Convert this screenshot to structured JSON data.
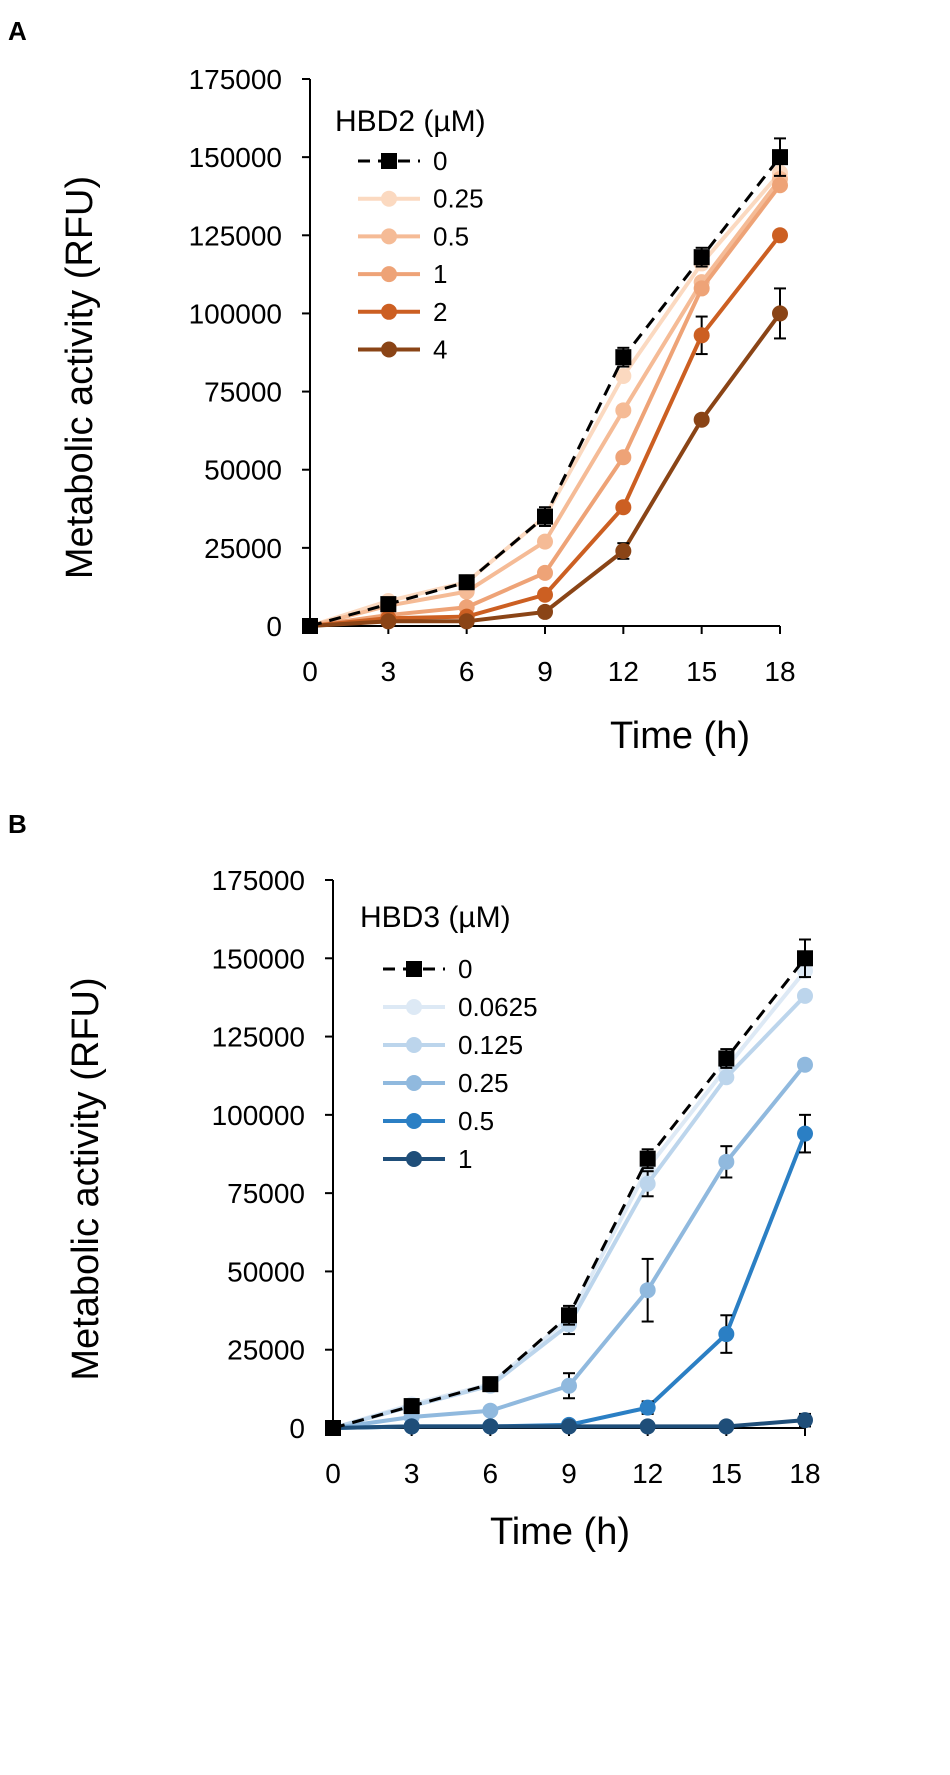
{
  "chart_data": [
    {
      "type": "line",
      "panel_label": "A",
      "xlabel": "Time (h)",
      "ylabel": "Metabolic activity (RFU)",
      "x": [
        0,
        3,
        6,
        9,
        12,
        15,
        18
      ],
      "xlim": [
        0,
        18
      ],
      "xticks": [
        "0",
        "3",
        "6",
        "9",
        "12",
        "15",
        "18"
      ],
      "ylim": [
        0,
        175000
      ],
      "yticks": [
        "0",
        "25000",
        "50000",
        "75000",
        "100000",
        "125000",
        "150000",
        "175000"
      ],
      "legend_title": "HBD2 (µM)",
      "legend_position": "top-left",
      "series": [
        {
          "name": "0",
          "color": "#000000",
          "marker": "square",
          "dashed": true,
          "values": [
            0,
            7000,
            14000,
            35000,
            86000,
            118000,
            150000
          ],
          "errors": [
            0,
            800,
            1500,
            3000,
            3000,
            3000,
            6000
          ]
        },
        {
          "name": "0.25",
          "color": "#fbd9c0",
          "marker": "circle",
          "dashed": false,
          "values": [
            0,
            8000,
            14000,
            35000,
            80000,
            116000,
            145000
          ],
          "errors": [
            0,
            0,
            0,
            0,
            0,
            0,
            0
          ]
        },
        {
          "name": "0.5",
          "color": "#f5bb96",
          "marker": "circle",
          "dashed": false,
          "values": [
            0,
            6500,
            11000,
            27000,
            69000,
            110000,
            143000
          ],
          "errors": [
            0,
            0,
            0,
            0,
            0,
            0,
            0
          ]
        },
        {
          "name": "1",
          "color": "#eea377",
          "marker": "circle",
          "dashed": false,
          "values": [
            0,
            3500,
            6000,
            17000,
            54000,
            108000,
            141000
          ],
          "errors": [
            0,
            0,
            0,
            0,
            0,
            0,
            0
          ]
        },
        {
          "name": "2",
          "color": "#cc5f22",
          "marker": "circle",
          "dashed": false,
          "values": [
            0,
            2500,
            3000,
            10000,
            38000,
            93000,
            125000
          ],
          "errors": [
            0,
            0,
            0,
            0,
            0,
            6000,
            0
          ]
        },
        {
          "name": "4",
          "color": "#8a4416",
          "marker": "circle",
          "dashed": false,
          "values": [
            0,
            1500,
            1500,
            4500,
            24000,
            66000,
            100000
          ],
          "errors": [
            0,
            0,
            0,
            0,
            2500,
            0,
            8000
          ]
        }
      ]
    },
    {
      "type": "line",
      "panel_label": "B",
      "xlabel": "Time (h)",
      "ylabel": "Metabolic activity (RFU)",
      "x": [
        0,
        3,
        6,
        9,
        12,
        15,
        18
      ],
      "xlim": [
        0,
        18
      ],
      "xticks": [
        "0",
        "3",
        "6",
        "9",
        "12",
        "15",
        "18"
      ],
      "ylim": [
        0,
        175000
      ],
      "yticks": [
        "0",
        "25000",
        "50000",
        "75000",
        "100000",
        "125000",
        "150000",
        "175000"
      ],
      "legend_title": "HBD3 (µM)",
      "legend_position": "top-left",
      "series": [
        {
          "name": "0",
          "color": "#000000",
          "marker": "square",
          "dashed": true,
          "values": [
            0,
            7000,
            14000,
            36000,
            86000,
            118000,
            150000
          ],
          "errors": [
            0,
            800,
            1500,
            3000,
            3000,
            3000,
            6000
          ]
        },
        {
          "name": "0.0625",
          "color": "#dde9f5",
          "marker": "circle",
          "dashed": false,
          "values": [
            0,
            7500,
            14000,
            35000,
            83000,
            115000,
            146000
          ],
          "errors": [
            0,
            0,
            0,
            0,
            0,
            0,
            0
          ]
        },
        {
          "name": "0.125",
          "color": "#bcd5ec",
          "marker": "circle",
          "dashed": false,
          "values": [
            0,
            7000,
            13500,
            33000,
            78000,
            112000,
            138000
          ],
          "errors": [
            0,
            0,
            0,
            3000,
            4000,
            0,
            0
          ]
        },
        {
          "name": "0.25",
          "color": "#90b9de",
          "marker": "circle",
          "dashed": false,
          "values": [
            0,
            3500,
            5500,
            13500,
            44000,
            85000,
            116000
          ],
          "errors": [
            0,
            0,
            0,
            4000,
            10000,
            5000,
            0
          ]
        },
        {
          "name": "0.5",
          "color": "#2b7fc4",
          "marker": "circle",
          "dashed": false,
          "values": [
            0,
            500,
            500,
            1000,
            6500,
            30000,
            94000
          ],
          "errors": [
            0,
            0,
            0,
            0,
            2000,
            6000,
            6000
          ]
        },
        {
          "name": "1",
          "color": "#1f4e79",
          "marker": "circle",
          "dashed": false,
          "values": [
            0,
            500,
            500,
            500,
            500,
            500,
            2500
          ],
          "errors": [
            0,
            0,
            0,
            0,
            0,
            0,
            2000
          ]
        }
      ]
    }
  ]
}
